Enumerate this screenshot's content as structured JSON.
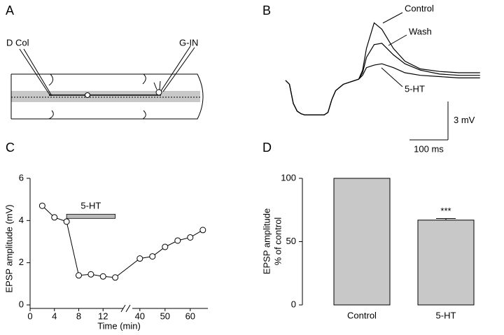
{
  "panel_labels": [
    "A",
    "B",
    "C",
    "D"
  ],
  "diagram": {
    "labels": [
      "D Col",
      "G-IN"
    ]
  },
  "chart_data": [
    {
      "type": "trace",
      "x": [
        0,
        10,
        20,
        30,
        40,
        50,
        60,
        80,
        100,
        110,
        120,
        130,
        150,
        170,
        190,
        200,
        210,
        230,
        250,
        280,
        310,
        350,
        400,
        450,
        505
      ],
      "series": [
        {
          "name": "Control",
          "color": "#000000",
          "values": [
            0,
            -0.3,
            -1.8,
            -2.4,
            -2.6,
            -2.7,
            -2.7,
            -2.7,
            -2.7,
            -2.5,
            -1.5,
            -0.8,
            -0.3,
            -0.1,
            0.1,
            0.8,
            2.5,
            4.5,
            4.0,
            2.5,
            1.5,
            0.9,
            0.7,
            0.6,
            0.6
          ]
        },
        {
          "name": "Wash",
          "color": "#000000",
          "values": [
            0,
            -0.3,
            -1.8,
            -2.4,
            -2.6,
            -2.7,
            -2.7,
            -2.7,
            -2.7,
            -2.5,
            -1.5,
            -0.8,
            -0.3,
            -0.1,
            0.1,
            0.6,
            1.8,
            2.8,
            2.9,
            2.0,
            1.3,
            0.8,
            0.5,
            0.4,
            0.4
          ]
        },
        {
          "name": "5-HT",
          "color": "#000000",
          "values": [
            0,
            -0.3,
            -1.8,
            -2.4,
            -2.6,
            -2.7,
            -2.7,
            -2.7,
            -2.7,
            -2.5,
            -1.5,
            -0.8,
            -0.3,
            -0.1,
            0.1,
            0.4,
            1.0,
            1.2,
            1.3,
            1.0,
            0.6,
            0.4,
            0.3,
            0.2,
            0.2
          ]
        }
      ],
      "scale_bar": {
        "x": {
          "value": 100,
          "label": "100 ms"
        },
        "y": {
          "value": 3,
          "label": "3 mV"
        }
      }
    },
    {
      "type": "line",
      "xlabel": "Time (min)",
      "ylabel": "EPSP amplitude (mV)",
      "x": [
        2,
        4,
        6,
        8,
        10,
        12,
        14,
        40,
        45,
        50,
        55,
        60,
        65
      ],
      "values": [
        4.7,
        4.15,
        3.95,
        1.4,
        1.45,
        1.35,
        1.3,
        2.2,
        2.3,
        2.75,
        3.05,
        3.2,
        3.55
      ],
      "color": "#000000",
      "xlim": [
        0,
        67
      ],
      "x_break": [
        16,
        37
      ],
      "xticks": [
        0,
        4,
        8,
        12,
        40,
        50,
        60
      ],
      "ylim": [
        0,
        6
      ],
      "yticks": [
        0,
        2,
        4,
        6
      ],
      "annotation": {
        "text": "5-HT",
        "x": [
          6,
          14
        ],
        "y": 4.2,
        "color": "#bbbbbb"
      }
    },
    {
      "type": "bar",
      "ylabel": [
        "EPSP amplitude",
        "% of control"
      ],
      "categories": [
        "Control",
        "5-HT"
      ],
      "values": [
        100,
        67
      ],
      "errors": [
        null,
        1.2
      ],
      "significance": [
        null,
        "***"
      ],
      "color": "#c8c8c8",
      "ylim": [
        0,
        100
      ],
      "yticks": [
        0,
        50,
        100
      ]
    }
  ]
}
